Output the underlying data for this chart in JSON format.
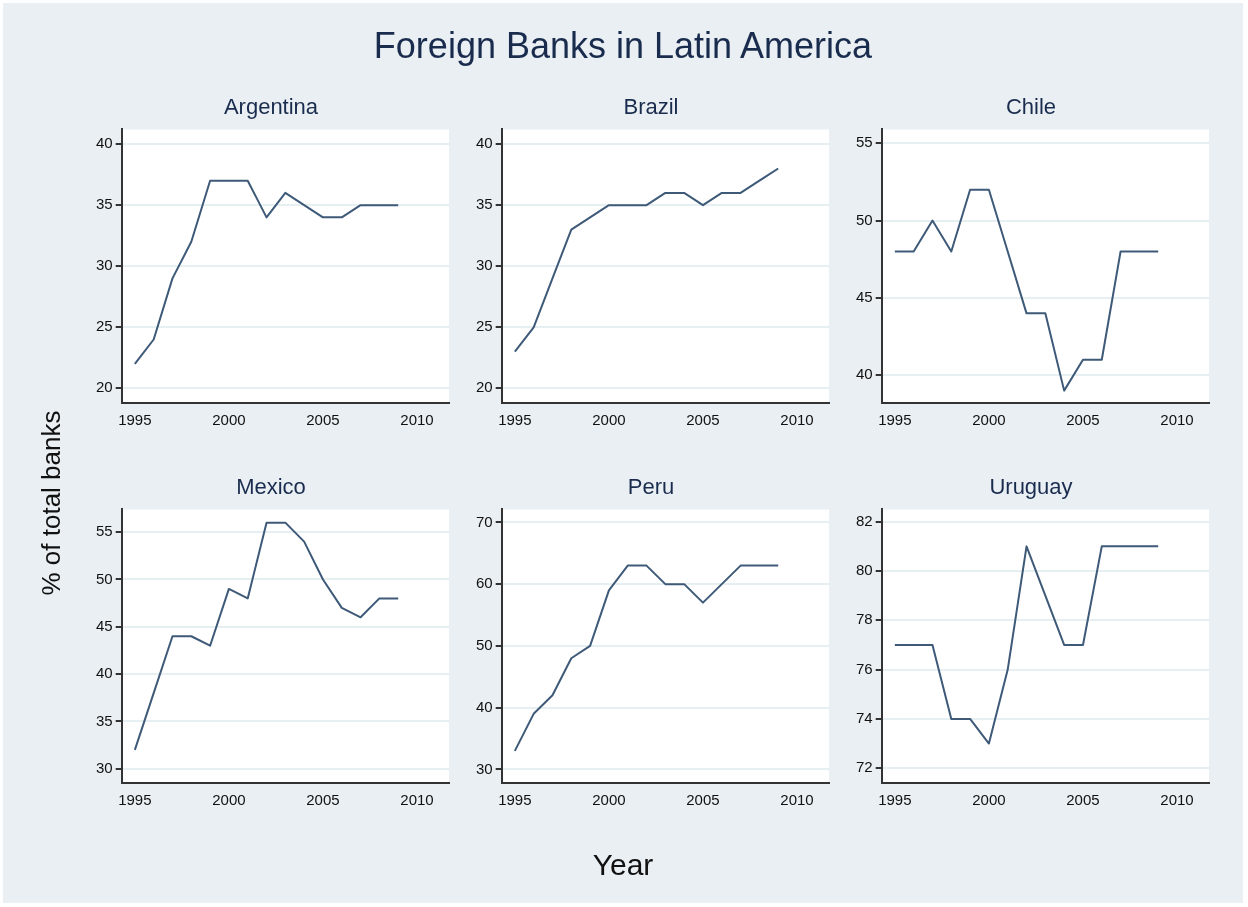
{
  "chart_data": [
    {
      "type": "other",
      "title": "Foreign Banks in Latin America",
      "xlabel": "Year",
      "ylabel": "% of total banks"
    },
    {
      "type": "line",
      "title": "Argentina",
      "x": [
        1995,
        1996,
        1997,
        1998,
        1999,
        2000,
        2001,
        2002,
        2003,
        2004,
        2005,
        2006,
        2007,
        2008,
        2009
      ],
      "values": [
        22,
        24,
        29,
        32,
        37,
        37,
        37,
        34,
        36,
        35,
        34,
        34,
        35,
        35,
        35
      ],
      "color": "#3e5a78",
      "xlim": [
        1994.3,
        2011.7
      ],
      "ylim": [
        18.8,
        41.2
      ],
      "xticks": [
        1995,
        2000,
        2005,
        2010
      ],
      "yticks": [
        20,
        25,
        30,
        35,
        40
      ],
      "grid": "y"
    },
    {
      "type": "line",
      "title": "Brazil",
      "x": [
        1995,
        1996,
        1997,
        1998,
        1999,
        2000,
        2001,
        2002,
        2003,
        2004,
        2005,
        2006,
        2007,
        2008,
        2009
      ],
      "values": [
        23,
        25,
        29,
        33,
        34,
        35,
        35,
        35,
        36,
        36,
        35,
        36,
        36,
        37,
        38
      ],
      "color": "#3e5a78",
      "xlim": [
        1994.3,
        2011.7
      ],
      "ylim": [
        18.8,
        41.2
      ],
      "xticks": [
        1995,
        2000,
        2005,
        2010
      ],
      "yticks": [
        20,
        25,
        30,
        35,
        40
      ],
      "grid": "y"
    },
    {
      "type": "line",
      "title": "Chile",
      "x": [
        1995,
        1996,
        1997,
        1998,
        1999,
        2000,
        2001,
        2002,
        2003,
        2004,
        2005,
        2006,
        2007,
        2008,
        2009
      ],
      "values": [
        48,
        48,
        50,
        48,
        52,
        52,
        48,
        44,
        44,
        39,
        41,
        41,
        48,
        48,
        48
      ],
      "color": "#3e5a78",
      "xlim": [
        1994.3,
        2011.7
      ],
      "ylim": [
        38.2,
        55.9
      ],
      "xticks": [
        1995,
        2000,
        2005,
        2010
      ],
      "yticks": [
        40,
        45,
        50,
        55
      ],
      "grid": "y"
    },
    {
      "type": "line",
      "title": "Mexico",
      "x": [
        1995,
        1996,
        1997,
        1998,
        1999,
        2000,
        2001,
        2002,
        2003,
        2004,
        2005,
        2006,
        2007,
        2008,
        2009
      ],
      "values": [
        32,
        38,
        44,
        44,
        43,
        49,
        48,
        56,
        56,
        54,
        50,
        47,
        46,
        48,
        48
      ],
      "color": "#3e5a78",
      "xlim": [
        1994.3,
        2011.7
      ],
      "ylim": [
        28.5,
        57.4
      ],
      "xticks": [
        1995,
        2000,
        2005,
        2010
      ],
      "yticks": [
        30,
        35,
        40,
        45,
        50,
        55
      ],
      "grid": "y"
    },
    {
      "type": "line",
      "title": "Peru",
      "x": [
        1995,
        1996,
        1997,
        1998,
        1999,
        2000,
        2001,
        2002,
        2003,
        2004,
        2005,
        2006,
        2007,
        2008,
        2009
      ],
      "values": [
        33,
        39,
        42,
        48,
        50,
        59,
        63,
        63,
        60,
        60,
        57,
        60,
        63,
        63,
        63
      ],
      "color": "#3e5a78",
      "xlim": [
        1994.3,
        2011.7
      ],
      "ylim": [
        27.8,
        72.1
      ],
      "xticks": [
        1995,
        2000,
        2005,
        2010
      ],
      "yticks": [
        30,
        40,
        50,
        60,
        70
      ],
      "grid": "y"
    },
    {
      "type": "line",
      "title": "Uruguay",
      "x": [
        1995,
        1996,
        1997,
        1998,
        1999,
        2000,
        2001,
        2002,
        2003,
        2004,
        2005,
        2006,
        2007,
        2008,
        2009
      ],
      "values": [
        77,
        77,
        77,
        74,
        74,
        73,
        76,
        81,
        79,
        77,
        77,
        81,
        81,
        81,
        81
      ],
      "color": "#3e5a78",
      "xlim": [
        1994.3,
        2011.7
      ],
      "ylim": [
        71.4,
        82.5
      ],
      "xticks": [
        1995,
        2000,
        2005,
        2010
      ],
      "yticks": [
        72,
        74,
        76,
        78,
        80,
        82
      ],
      "grid": "y"
    }
  ]
}
